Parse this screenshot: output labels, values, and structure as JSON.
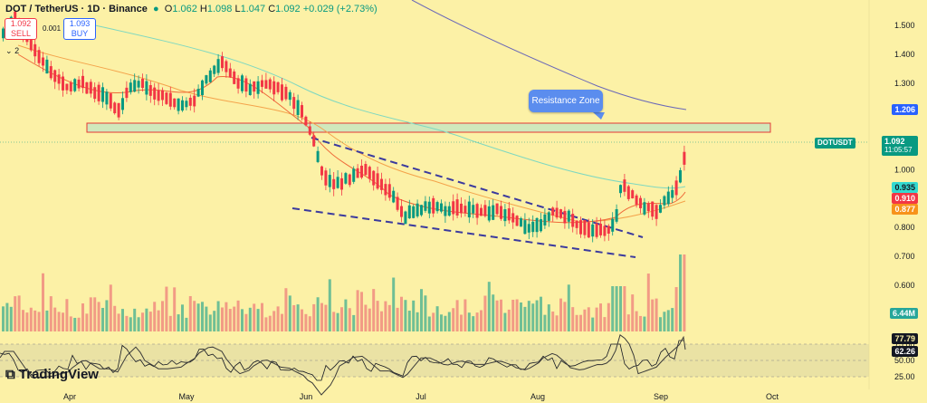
{
  "header": {
    "symbol": "DOT / TetherUS · 1D · Binance",
    "open_label": "O",
    "open": "1.062",
    "high_label": "H",
    "high": "1.098",
    "low_label": "L",
    "low": "1.047",
    "close_label": "C",
    "close": "1.092",
    "change": "+0.029 (+2.73%)"
  },
  "trade": {
    "sell_price": "1.092",
    "sell_label": "SELL",
    "buy_price": "1.093",
    "buy_label": "BUY",
    "spread": "0.001",
    "collapse_count": "2"
  },
  "annotation": {
    "resistance_label": "Resistance Zone"
  },
  "branding": {
    "logo_text": "TradingView"
  },
  "colors": {
    "background": "#fcf1a6",
    "up": "#089981",
    "down": "#f23645",
    "volume_up": "#6fbf95",
    "volume_down": "#f29b85",
    "ma_fast": "#ef6b3a",
    "ma_mid": "#f4a34b",
    "ma_slow_teal": "#7fd8c0",
    "ma_200": "#6a68b8",
    "trend": "#3b3a9e",
    "rsi": "#000000",
    "rsi_band": "#c9c7a0"
  },
  "chart_data": {
    "type": "candlestick",
    "title": "DOT / TetherUS · 1D · Binance",
    "x_ticks": [
      "Apr",
      "May",
      "Jun",
      "Jul",
      "Aug",
      "Sep",
      "Oct"
    ],
    "y_ticks": [
      "1.500",
      "1.400",
      "1.300",
      "1.200",
      "1.000",
      "0.900",
      "0.800",
      "0.700",
      "0.600"
    ],
    "y_axis_labels": {
      "current_symbol": "DOTUSDT",
      "current_price": "1.092",
      "countdown": "11:05:57",
      "resistance_price": "1.206",
      "ma_teal": "0.935",
      "ma_red": "0.910",
      "ma_orange": "0.877",
      "volume": "6.44M"
    },
    "rsi": {
      "ticks": [
        "75.00",
        "50.00",
        "25.00"
      ],
      "value": "77.79",
      "signal": "62.26"
    },
    "resistance_zone": [
      1.13,
      1.16
    ],
    "last_close": 1.092
  }
}
